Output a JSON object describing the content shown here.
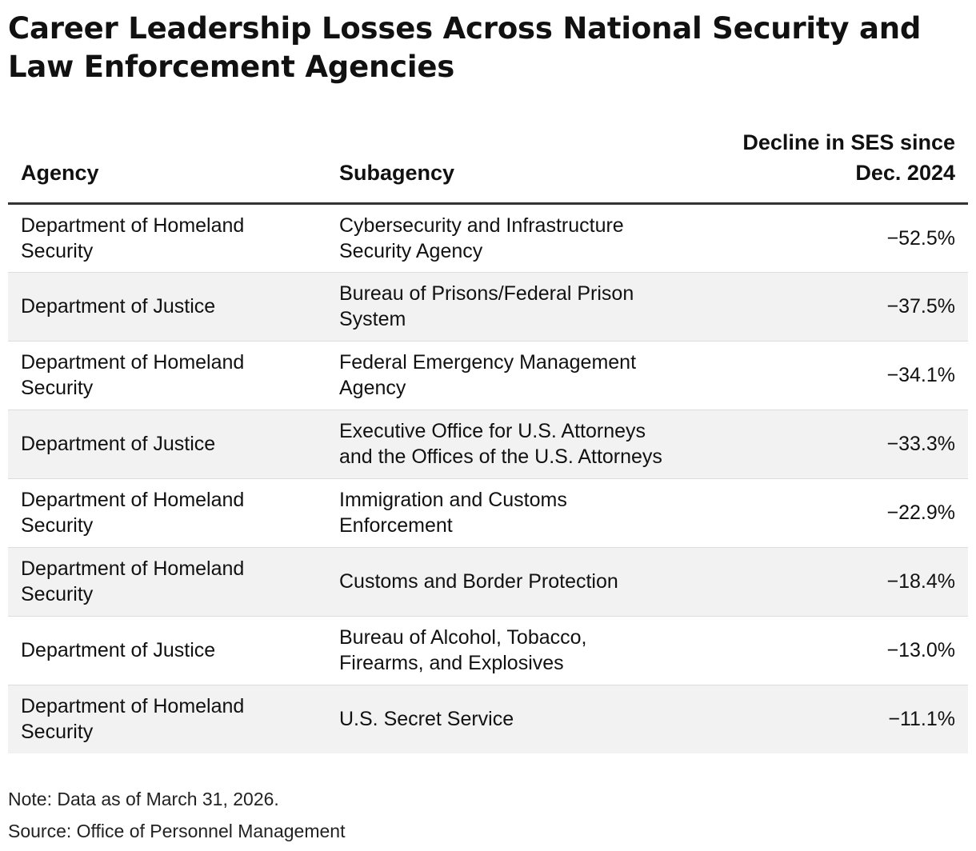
{
  "chart_data": {
    "type": "table",
    "title": "Career Leadership Losses Across National Security and Law Enforcement Agencies",
    "columns": [
      "Agency",
      "Subagency",
      "Decline in SES since Dec. 2024"
    ],
    "rows": [
      {
        "agency": "Department of Homeland Security",
        "subagency": "Cybersecurity and Infrastructure Security Agency",
        "decline": "−52.5%"
      },
      {
        "agency": "Department of Justice",
        "subagency": "Bureau of Prisons/Federal Prison System",
        "decline": "−37.5%"
      },
      {
        "agency": "Department of Homeland Security",
        "subagency": "Federal Emergency Management Agency",
        "decline": "−34.1%"
      },
      {
        "agency": "Department of Justice",
        "subagency": "Executive Office for U.S. Attorneys and the Offices of the U.S. Attorneys",
        "decline": "−33.3%"
      },
      {
        "agency": "Department of Homeland Security",
        "subagency": "Immigration and Customs Enforcement",
        "decline": "−22.9%"
      },
      {
        "agency": "Department of Homeland Security",
        "subagency": "Customs and Border Protection",
        "decline": "−18.4%"
      },
      {
        "agency": "Department of Justice",
        "subagency": "Bureau of Alcohol, Tobacco, Firearms, and Explosives",
        "decline": "−13.0%"
      },
      {
        "agency": "Department of Homeland Security",
        "subagency": "U.S. Secret Service",
        "decline": "−11.1%"
      }
    ],
    "note": "Note: Data as of March 31, 2026.",
    "source": "Source: Office of Personnel Management"
  },
  "colors": {
    "text": "#111111",
    "header_rule": "#333333",
    "row_divider": "#dcdcdc",
    "row_shade": "#f2f2f2"
  }
}
